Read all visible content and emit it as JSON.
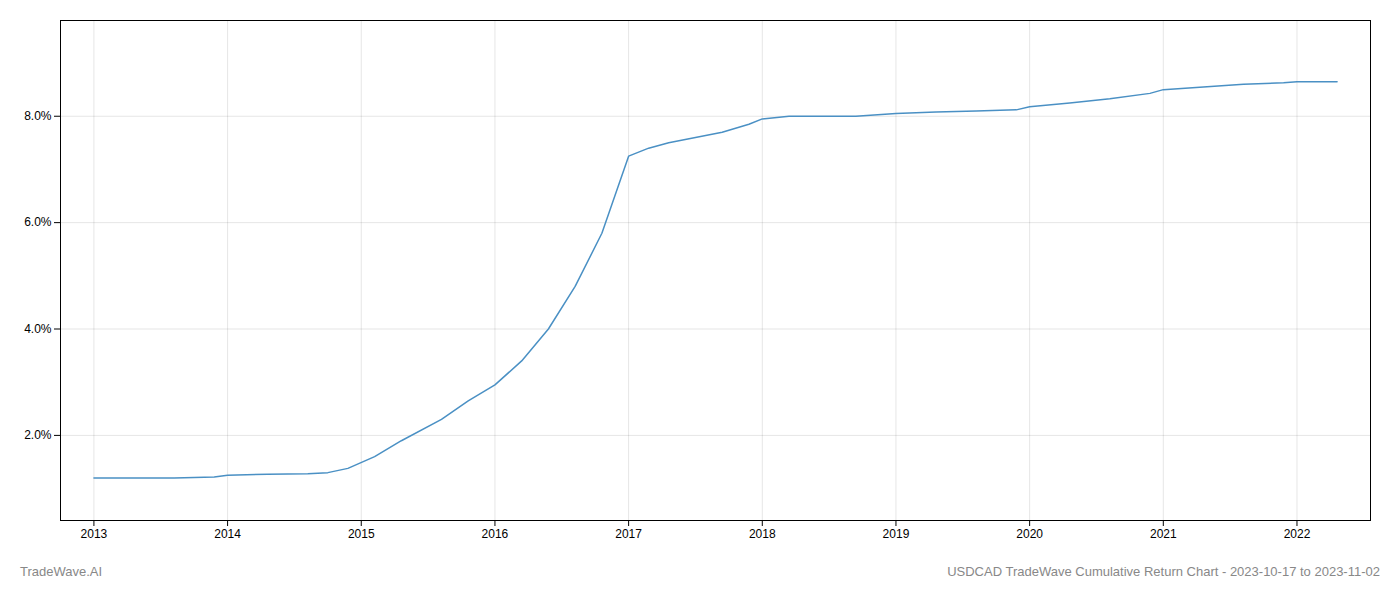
{
  "chart_data": {
    "type": "line",
    "x": [
      2013.0,
      2013.3,
      2013.6,
      2013.9,
      2014.0,
      2014.3,
      2014.6,
      2014.75,
      2014.9,
      2015.1,
      2015.3,
      2015.6,
      2015.8,
      2016.0,
      2016.2,
      2016.4,
      2016.6,
      2016.8,
      2017.0,
      2017.15,
      2017.3,
      2017.5,
      2017.7,
      2017.9,
      2018.0,
      2018.2,
      2018.5,
      2018.7,
      2019.0,
      2019.3,
      2019.6,
      2019.9,
      2020.0,
      2020.3,
      2020.6,
      2020.9,
      2021.0,
      2021.3,
      2021.6,
      2021.9,
      2022.0,
      2022.3
    ],
    "values": [
      1.2,
      1.2,
      1.2,
      1.22,
      1.25,
      1.27,
      1.28,
      1.3,
      1.38,
      1.6,
      1.9,
      2.3,
      2.65,
      2.95,
      3.4,
      4.0,
      4.8,
      5.8,
      7.25,
      7.4,
      7.5,
      7.6,
      7.7,
      7.85,
      7.95,
      8.0,
      8.0,
      8.0,
      8.05,
      8.08,
      8.1,
      8.12,
      8.18,
      8.25,
      8.33,
      8.43,
      8.5,
      8.55,
      8.6,
      8.63,
      8.65,
      8.65
    ],
    "color": "#4a90c4",
    "xlim": [
      2012.75,
      2022.55
    ],
    "ylim": [
      0.4,
      9.8
    ],
    "xticks": [
      2013,
      2014,
      2015,
      2016,
      2017,
      2018,
      2019,
      2020,
      2021,
      2022
    ],
    "yticks": [
      {
        "value": 2.0,
        "label": "2.0%"
      },
      {
        "value": 4.0,
        "label": "4.0%"
      },
      {
        "value": 6.0,
        "label": "6.0%"
      },
      {
        "value": 8.0,
        "label": "8.0%"
      }
    ],
    "grid": true,
    "annotations": [
      "TradeWave.AI",
      "USDCAD TradeWave Cumulative Return Chart - 2023-10-17 to 2023-11-02"
    ]
  }
}
